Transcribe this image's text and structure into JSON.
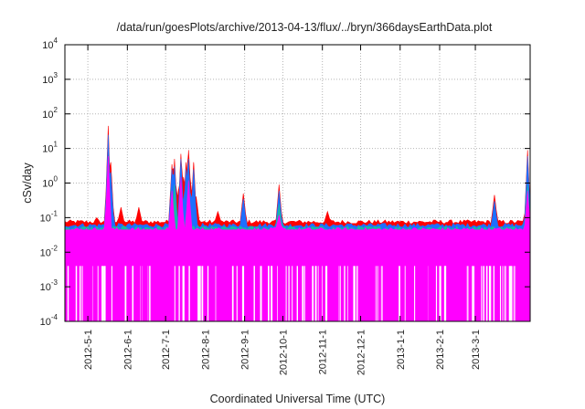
{
  "chart_data": {
    "type": "area",
    "title": "/data/run/goesPlots/archive/2013-04-13/flux/../bryn/366daysEarthData.plot",
    "xlabel": "Coordinated Universal Time (UTC)",
    "ylabel": "cSv/day",
    "y_scale": "log",
    "ylim": [
      0.0001,
      10000
    ],
    "xlim": [
      "2012-04-13",
      "2013-04-13"
    ],
    "grid": true,
    "legend": "none",
    "y_ticks": [
      {
        "value": 0.0001,
        "base": "10",
        "exp": "-4"
      },
      {
        "value": 0.001,
        "base": "10",
        "exp": "-3"
      },
      {
        "value": 0.01,
        "base": "10",
        "exp": "-2"
      },
      {
        "value": 0.1,
        "base": "10",
        "exp": "-1"
      },
      {
        "value": 1,
        "base": "10",
        "exp": "0"
      },
      {
        "value": 10,
        "base": "10",
        "exp": "1"
      },
      {
        "value": 100,
        "base": "10",
        "exp": "2"
      },
      {
        "value": 1000,
        "base": "10",
        "exp": "3"
      },
      {
        "value": 10000,
        "base": "10",
        "exp": "4"
      }
    ],
    "x_ticks": [
      {
        "date": "2012-05-01",
        "label": "2012-5-1"
      },
      {
        "date": "2012-06-01",
        "label": "2012-6-1"
      },
      {
        "date": "2012-07-01",
        "label": "2012-7-1"
      },
      {
        "date": "2012-08-01",
        "label": "2012-8-1"
      },
      {
        "date": "2012-09-01",
        "label": "2012-9-1"
      },
      {
        "date": "2012-10-01",
        "label": "2012-10-1"
      },
      {
        "date": "2012-11-01",
        "label": "2012-11-1"
      },
      {
        "date": "2012-12-01",
        "label": "2012-12-1"
      },
      {
        "date": "2013-01-01",
        "label": "2013-1-1"
      },
      {
        "date": "2013-02-01",
        "label": "2013-2-1"
      },
      {
        "date": "2013-03-01",
        "label": "2013-3-1"
      }
    ],
    "series": [
      {
        "color": "#ff0000",
        "baseline": 0.075,
        "points": [
          [
            "2012-05-08",
            0.1
          ],
          [
            "2012-05-17",
            45
          ],
          [
            "2012-05-19",
            4
          ],
          [
            "2012-05-27",
            0.2
          ],
          [
            "2012-06-10",
            0.2
          ],
          [
            "2012-07-06",
            3.5
          ],
          [
            "2012-07-08",
            5
          ],
          [
            "2012-07-11",
            0.6
          ],
          [
            "2012-07-13",
            7
          ],
          [
            "2012-07-15",
            1.5
          ],
          [
            "2012-07-17",
            4
          ],
          [
            "2012-07-19",
            9
          ],
          [
            "2012-07-20",
            2
          ],
          [
            "2012-07-23",
            4
          ],
          [
            "2012-07-25",
            0.4
          ],
          [
            "2012-08-11",
            0.15
          ],
          [
            "2012-08-31",
            0.5
          ],
          [
            "2012-09-28",
            0.9
          ],
          [
            "2012-11-05",
            0.15
          ],
          [
            "2013-03-16",
            0.45
          ],
          [
            "2013-04-11",
            9
          ]
        ]
      },
      {
        "color": "#1e6fff",
        "baseline": 0.06,
        "points": [
          [
            "2012-05-17",
            25
          ],
          [
            "2012-05-19",
            2
          ],
          [
            "2012-07-06",
            2.5
          ],
          [
            "2012-07-08",
            3
          ],
          [
            "2012-07-13",
            5
          ],
          [
            "2012-07-17",
            2.5
          ],
          [
            "2012-07-19",
            5
          ],
          [
            "2012-07-23",
            2.5
          ],
          [
            "2012-08-31",
            0.35
          ],
          [
            "2012-09-28",
            0.6
          ],
          [
            "2013-03-16",
            0.3
          ],
          [
            "2013-04-11",
            6
          ]
        ]
      },
      {
        "color": "#16b8a6",
        "baseline": 0.05,
        "points": [
          [
            "2012-05-17",
            4
          ],
          [
            "2012-07-08",
            0.9
          ],
          [
            "2012-07-13",
            1.2
          ],
          [
            "2012-07-19",
            1.2
          ],
          [
            "2012-09-28",
            0.25
          ],
          [
            "2013-04-11",
            0.9
          ]
        ]
      },
      {
        "color": "#ff00ff",
        "baseline": 0.045,
        "dips_to": 0.0001,
        "points": [
          [
            "2012-05-17",
            6
          ],
          [
            "2012-07-06",
            0.6
          ],
          [
            "2012-07-13",
            1.5
          ],
          [
            "2012-07-19",
            1.2
          ],
          [
            "2012-09-28",
            0.12
          ],
          [
            "2013-04-11",
            0.6
          ]
        ]
      }
    ]
  }
}
